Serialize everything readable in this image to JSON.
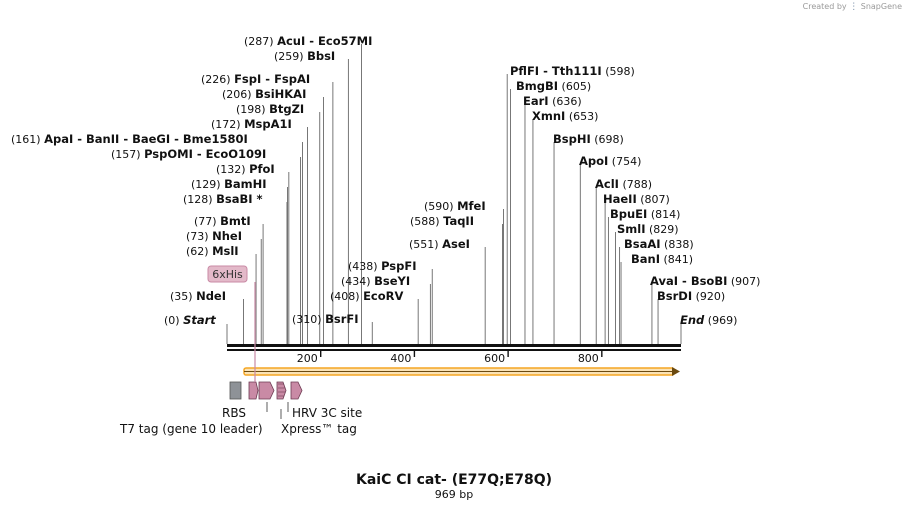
{
  "credit": {
    "created_by": "Created by",
    "brand": "SnapGene"
  },
  "map": {
    "title": "KaiC CI cat- (E77Q;E78Q)",
    "length_label": "969 bp",
    "length": 969
  },
  "ticks": [
    "200",
    "400",
    "600",
    "800"
  ],
  "start": {
    "pos": "(0)",
    "label": "Start"
  },
  "end": {
    "pos": "(969)",
    "label": "End"
  },
  "sites": [
    {
      "pos": "(287)",
      "names": [
        "AcuI",
        "Eco57MI"
      ]
    },
    {
      "pos": "(259)",
      "names": [
        "BbsI"
      ]
    },
    {
      "pos": "(226)",
      "names": [
        "FspI",
        "FspAI"
      ]
    },
    {
      "pos": "(206)",
      "names": [
        "BsiHKAI"
      ]
    },
    {
      "pos": "(198)",
      "names": [
        "BtgZI"
      ]
    },
    {
      "pos": "(172)",
      "names": [
        "MspA1I"
      ]
    },
    {
      "pos": "(161)",
      "names": [
        "ApaI",
        "BanII",
        "BaeGI",
        "Bme1580I"
      ]
    },
    {
      "pos": "(157)",
      "names": [
        "PspOMI",
        "EcoO109I"
      ]
    },
    {
      "pos": "(132)",
      "names": [
        "PfoI"
      ]
    },
    {
      "pos": "(129)",
      "names": [
        "BamHI"
      ]
    },
    {
      "pos": "(128)",
      "names": [
        "BsaBI *"
      ]
    },
    {
      "pos": "(77)",
      "names": [
        "BmtI"
      ]
    },
    {
      "pos": "(73)",
      "names": [
        "NheI"
      ]
    },
    {
      "pos": "(62)",
      "names": [
        "MslI"
      ]
    },
    {
      "pos": "(35)",
      "names": [
        "NdeI"
      ]
    },
    {
      "pos": "(438)",
      "names": [
        "PspFI"
      ]
    },
    {
      "pos": "(434)",
      "names": [
        "BseYI"
      ]
    },
    {
      "pos": "(408)",
      "names": [
        "EcoRV"
      ]
    },
    {
      "pos": "(310)",
      "names": [
        "BsrFI"
      ]
    },
    {
      "pos": "(590)",
      "names": [
        "MfeI"
      ]
    },
    {
      "pos": "(588)",
      "names": [
        "TaqII"
      ]
    },
    {
      "pos": "(551)",
      "names": [
        "AseI"
      ]
    },
    {
      "pos": "(598)",
      "names": [
        "PflFI",
        "Tth111I"
      ]
    },
    {
      "pos": "(605)",
      "names": [
        "BmgBI"
      ]
    },
    {
      "pos": "(636)",
      "names": [
        "EarI"
      ]
    },
    {
      "pos": "(653)",
      "names": [
        "XmnI"
      ]
    },
    {
      "pos": "(698)",
      "names": [
        "BspHI"
      ]
    },
    {
      "pos": "(754)",
      "names": [
        "ApoI"
      ]
    },
    {
      "pos": "(788)",
      "names": [
        "AclI"
      ]
    },
    {
      "pos": "(807)",
      "names": [
        "HaeII"
      ]
    },
    {
      "pos": "(814)",
      "names": [
        "BpuEI"
      ]
    },
    {
      "pos": "(829)",
      "names": [
        "SmlI"
      ]
    },
    {
      "pos": "(838)",
      "names": [
        "BsaAI"
      ]
    },
    {
      "pos": "(841)",
      "names": [
        "BanI"
      ]
    },
    {
      "pos": "(907)",
      "names": [
        "AvaI",
        "BsoBI"
      ]
    },
    {
      "pos": "(920)",
      "names": [
        "BsrDI"
      ]
    }
  ],
  "features": {
    "his_tag": "6xHis",
    "rbs": "RBS",
    "t7_tag": "T7 tag (gene 10 leader)",
    "hrv": "HRV 3C site",
    "xpress": "Xpress™ tag"
  },
  "colors": {
    "orf": "#f5a623",
    "feature": "#c98aa5",
    "rbs": "#8e9297",
    "his": "#e3b9c9"
  }
}
